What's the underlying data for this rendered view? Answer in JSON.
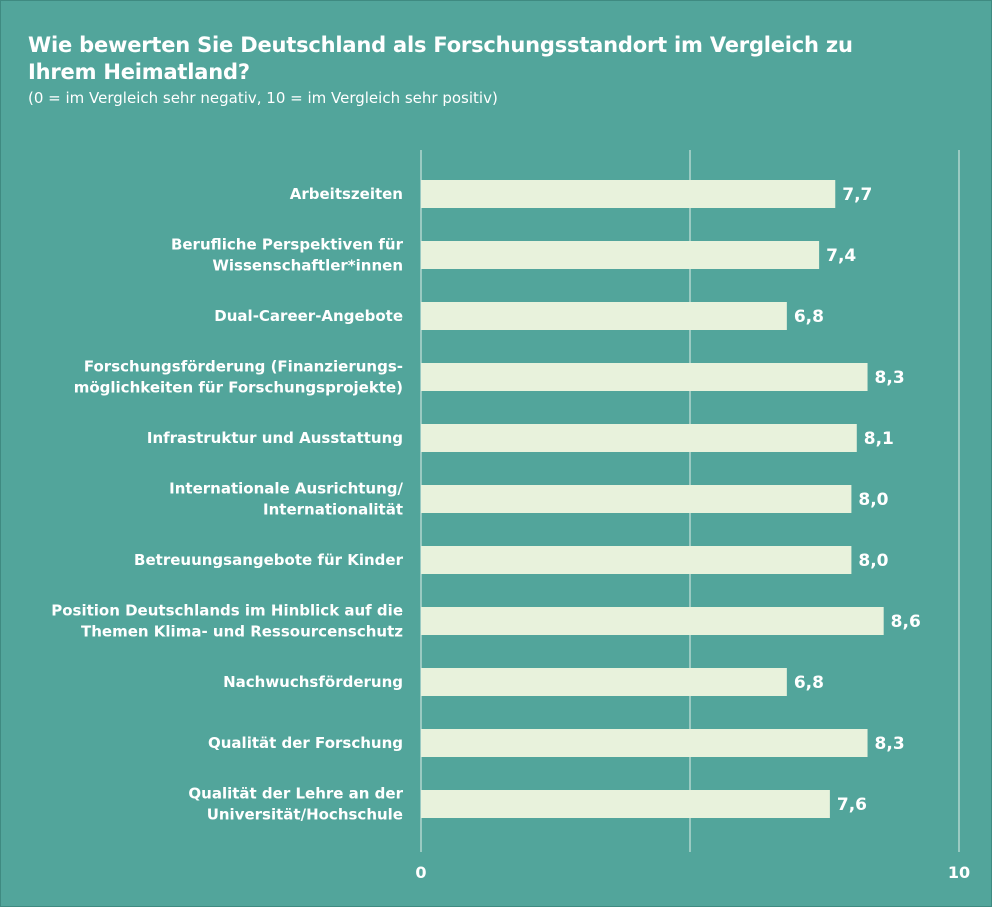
{
  "chart_data": {
    "type": "bar",
    "orientation": "horizontal",
    "title": "Wie bewerten Sie Deutschland als Forschungsstandort im Vergleich zu Ihrem Heimatland?",
    "subtitle": "(0 = im Vergleich sehr negativ, 10 = im Vergleich sehr positiv)",
    "categories": [
      [
        "Arbeitszeiten"
      ],
      [
        "Berufliche Perspektiven für",
        "Wissenschaftler*innen"
      ],
      [
        "Dual-Career-Angebote"
      ],
      [
        "Forschungsförderung (Finanzierungs-",
        "möglichkeiten für Forschungsprojekte)"
      ],
      [
        "Infrastruktur und Ausstattung"
      ],
      [
        "Internationale Ausrichtung/",
        "Internationalität"
      ],
      [
        "Betreuungsangebote für Kinder"
      ],
      [
        "Position Deutschlands im Hinblick auf die",
        "Themen Klima- und Ressourcenschutz"
      ],
      [
        "Nachwuchsförderung"
      ],
      [
        "Qualität der Forschung"
      ],
      [
        "Qualität der Lehre an der",
        "Universität/Hochschule"
      ]
    ],
    "values": [
      7.7,
      7.4,
      6.8,
      8.3,
      8.1,
      8.0,
      8.0,
      8.6,
      6.8,
      8.3,
      7.6
    ],
    "value_labels": [
      "7,7",
      "7,4",
      "6,8",
      "8,3",
      "8,1",
      "8,0",
      "8,0",
      "8,6",
      "6,8",
      "8,3",
      "7,6"
    ],
    "xlim": [
      0,
      10
    ],
    "xticks": [
      0,
      10
    ],
    "xtick_labels": [
      "0",
      "10"
    ],
    "gridlines": [
      0,
      5,
      10
    ],
    "xlabel": "",
    "ylabel": "",
    "colors": {
      "background": "#52a59b",
      "bar": "#e8f2dc",
      "text": "#ffffff",
      "grid": "#e3efe9"
    }
  }
}
